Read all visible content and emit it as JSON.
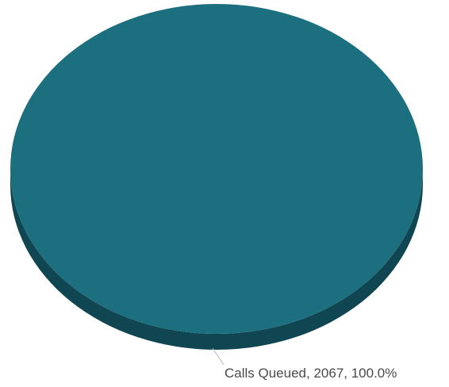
{
  "chart_data": {
    "type": "pie",
    "categories": [
      "Calls Queued"
    ],
    "values": [
      2067
    ],
    "percentages": [
      100.0
    ],
    "labels": [
      "Calls Queued, 2067, 100.0%"
    ],
    "colors": {
      "slice_top": "#1b6f7e",
      "slice_side": "#104652",
      "leader_line": "#b5b5b5",
      "label_text": "#4a4a4a"
    },
    "style": "3d"
  }
}
